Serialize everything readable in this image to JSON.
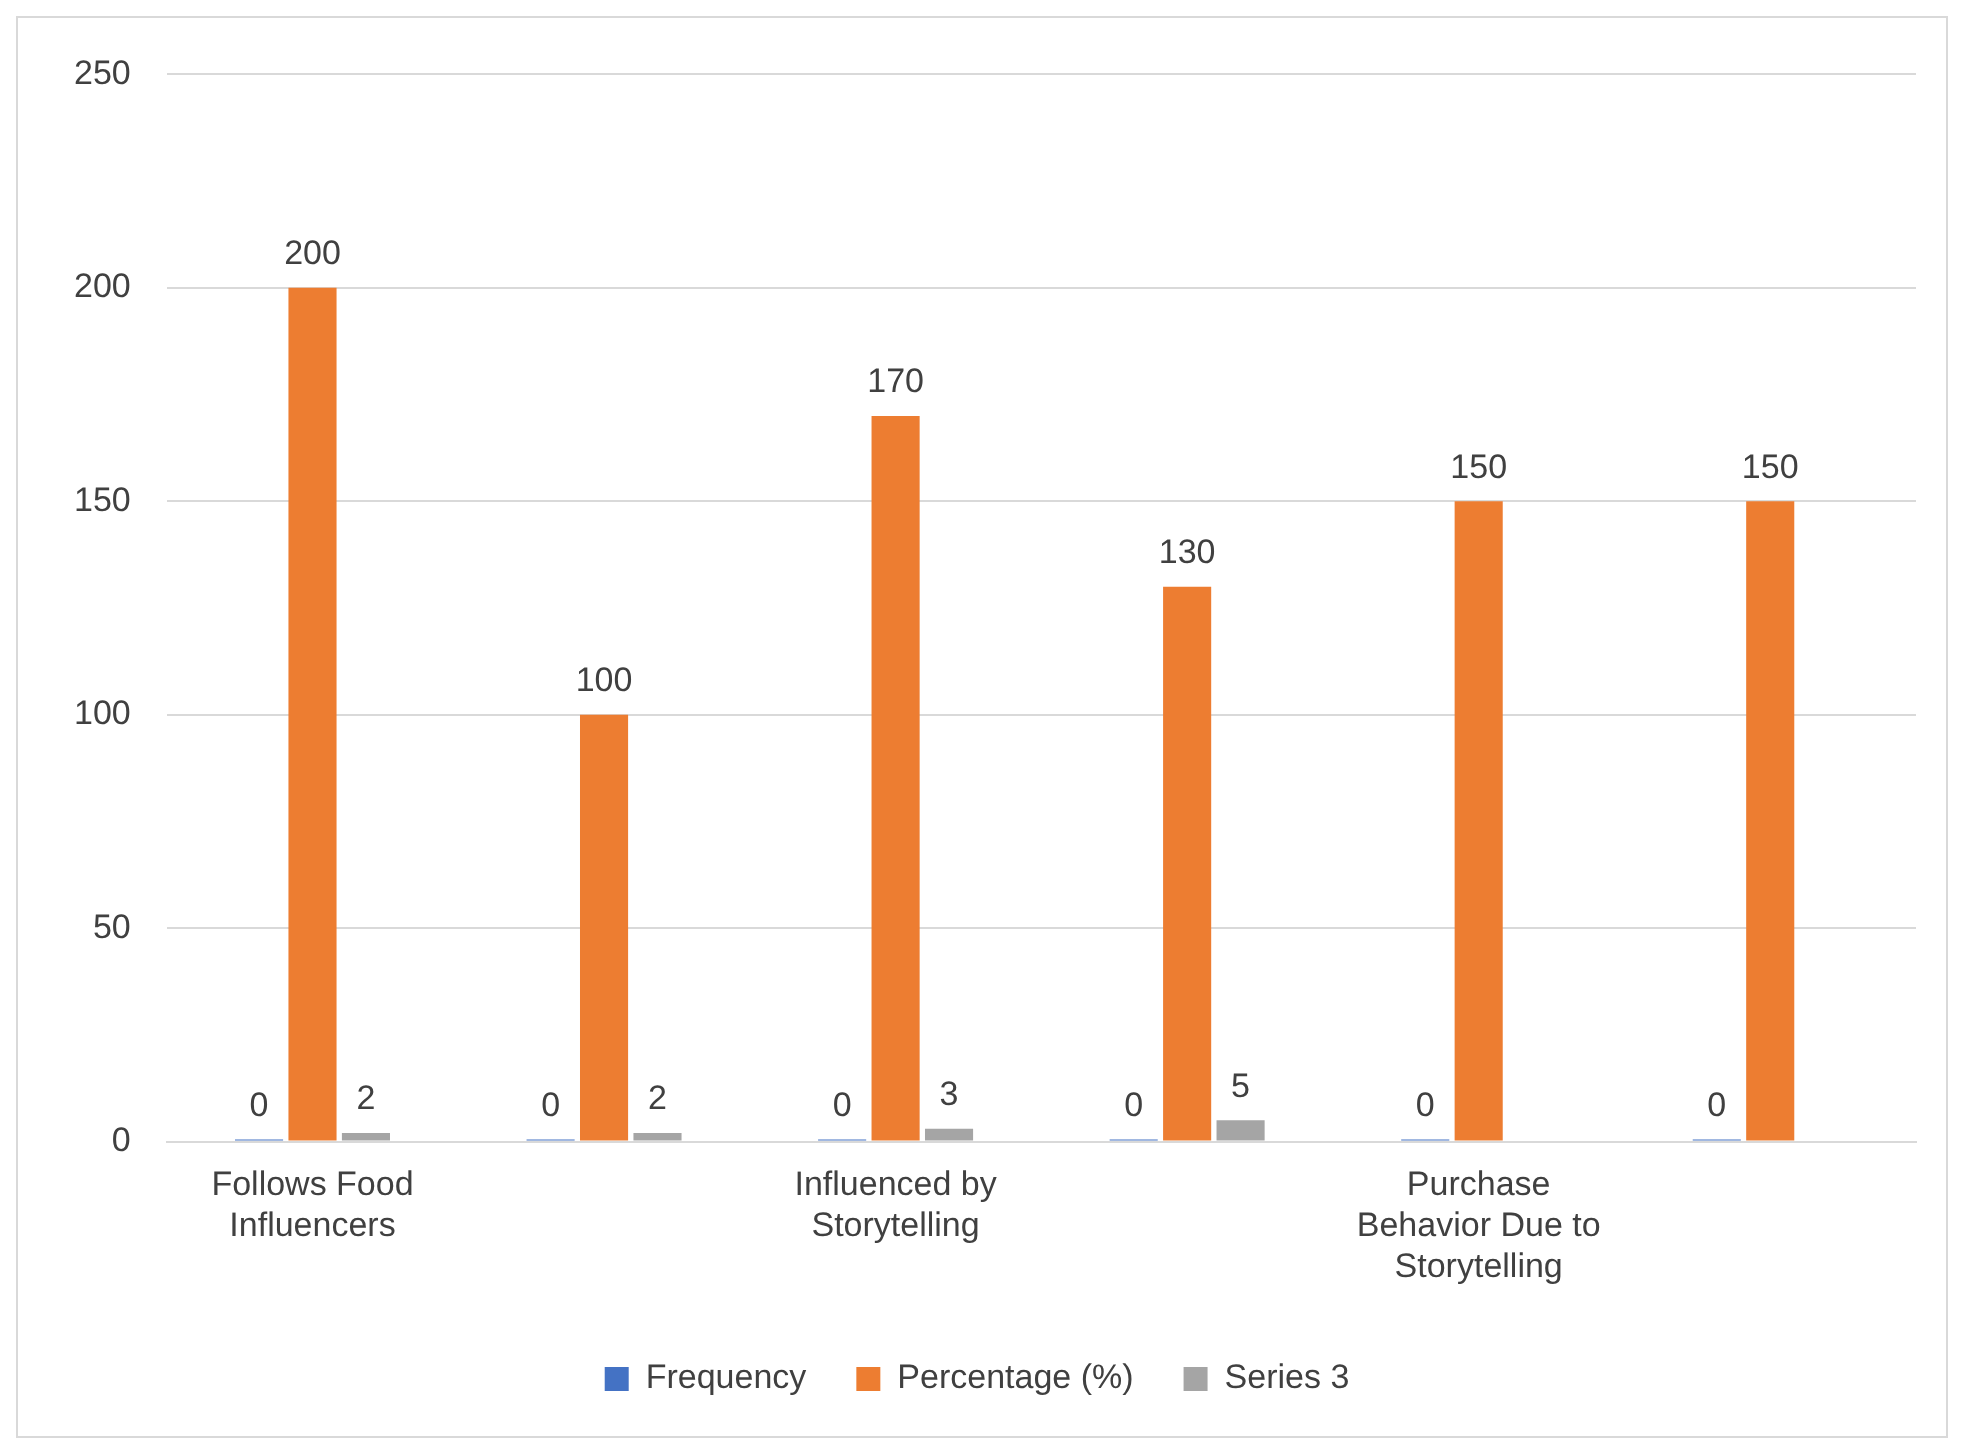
{
  "chart_data": {
    "type": "bar",
    "categories": [
      "Follows Food Influencers",
      null,
      "Influenced by Storytelling",
      null,
      "Purchase Behavior Due to Storytelling",
      null
    ],
    "series": [
      {
        "name": "Frequency",
        "color": "#4472c4",
        "values": [
          0,
          0,
          0,
          0,
          0,
          0
        ]
      },
      {
        "name": "Percentage (%)",
        "color": "#ed7d31",
        "values": [
          200,
          100,
          170,
          130,
          150,
          150
        ]
      },
      {
        "name": "Series 3",
        "color": "#a5a5a5",
        "values": [
          2,
          2,
          3,
          5,
          null,
          null
        ]
      }
    ],
    "ylim": [
      0,
      250
    ],
    "yticks": [
      0,
      50,
      100,
      150,
      200,
      250
    ],
    "grid": "y",
    "legend": "bottom",
    "data_labels": true
  }
}
